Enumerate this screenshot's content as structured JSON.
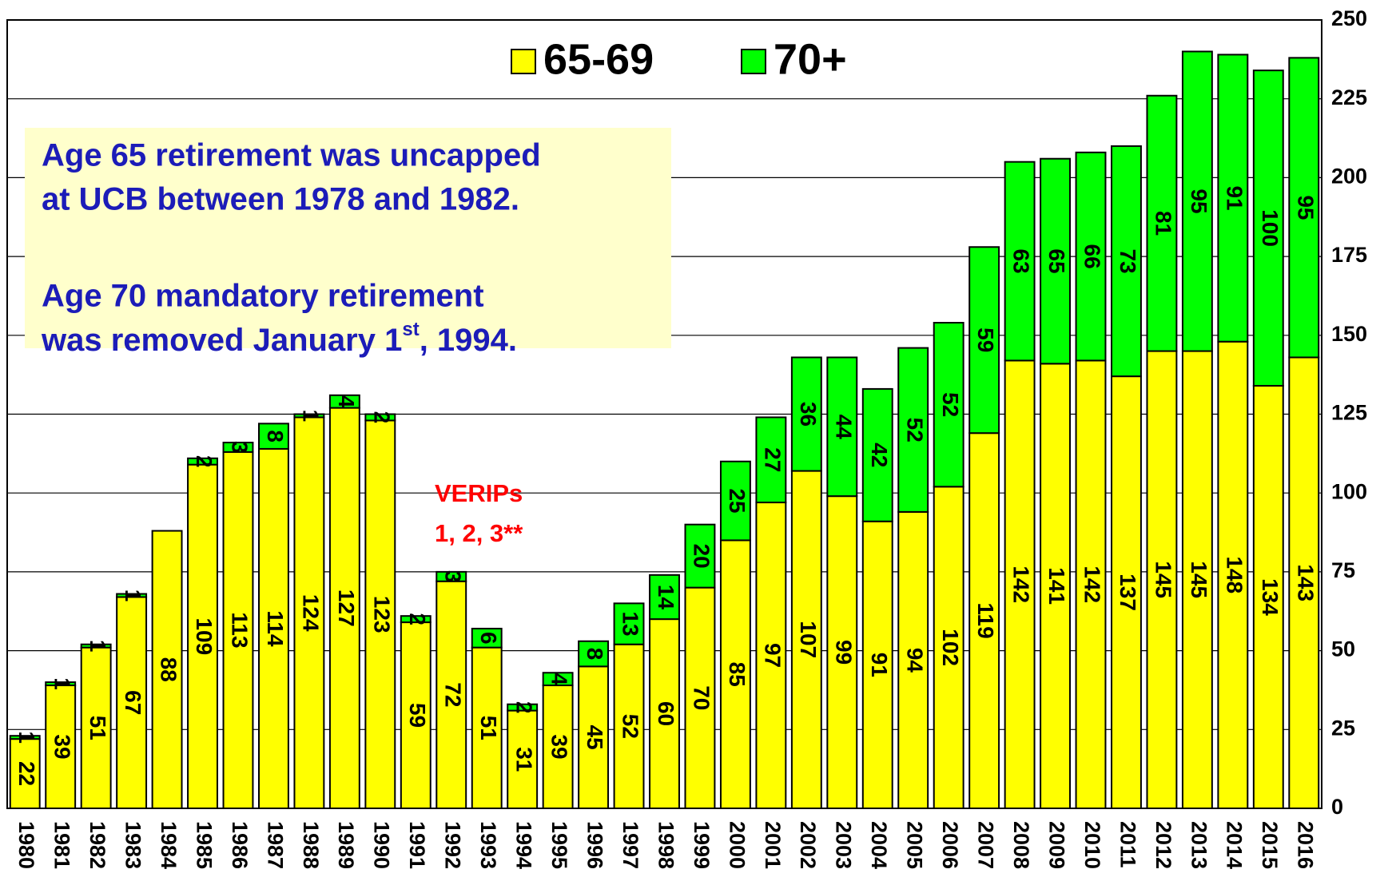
{
  "chart_data": {
    "type": "bar",
    "stacked": true,
    "categories": [
      "1980",
      "1981",
      "1982",
      "1983",
      "1984",
      "1985",
      "1986",
      "1987",
      "1988",
      "1989",
      "1990",
      "1991",
      "1992",
      "1993",
      "1994",
      "1995",
      "1996",
      "1997",
      "1998",
      "1999",
      "2000",
      "2001",
      "2002",
      "2003",
      "2004",
      "2005",
      "2006",
      "2007",
      "2008",
      "2009",
      "2010",
      "2011",
      "2012",
      "2013",
      "2014",
      "2015",
      "2016"
    ],
    "series": [
      {
        "name": "65-69",
        "color": "#ffff00",
        "values": [
          22,
          39,
          51,
          67,
          88,
          109,
          113,
          114,
          124,
          127,
          123,
          59,
          72,
          51,
          31,
          39,
          45,
          52,
          60,
          70,
          85,
          97,
          107,
          99,
          91,
          94,
          102,
          119,
          142,
          141,
          142,
          137,
          145,
          145,
          148,
          134,
          143
        ]
      },
      {
        "name": "70+",
        "color": "#00ff00",
        "values": [
          1,
          1,
          1,
          1,
          null,
          2,
          3,
          8,
          1,
          4,
          2,
          2,
          3,
          6,
          2,
          4,
          8,
          13,
          14,
          20,
          25,
          27,
          36,
          44,
          42,
          52,
          52,
          59,
          63,
          65,
          66,
          73,
          81,
          95,
          91,
          100,
          95
        ]
      }
    ],
    "ylim": [
      0,
      250
    ],
    "yticks": [
      0,
      25,
      50,
      75,
      100,
      125,
      150,
      175,
      200,
      225,
      250
    ],
    "grid": true,
    "y_axis_side": "right",
    "note": {
      "lines": [
        "Age 65 retirement was uncapped",
        "at UCB between 1978 and 1982.",
        "Age 70 mandatory retirement"
      ],
      "last_line": {
        "text": "was removed January 1",
        "sup": "st",
        "tail": ", 1994."
      }
    },
    "callout": [
      "VERIPs",
      "1, 2, 3**"
    ]
  }
}
